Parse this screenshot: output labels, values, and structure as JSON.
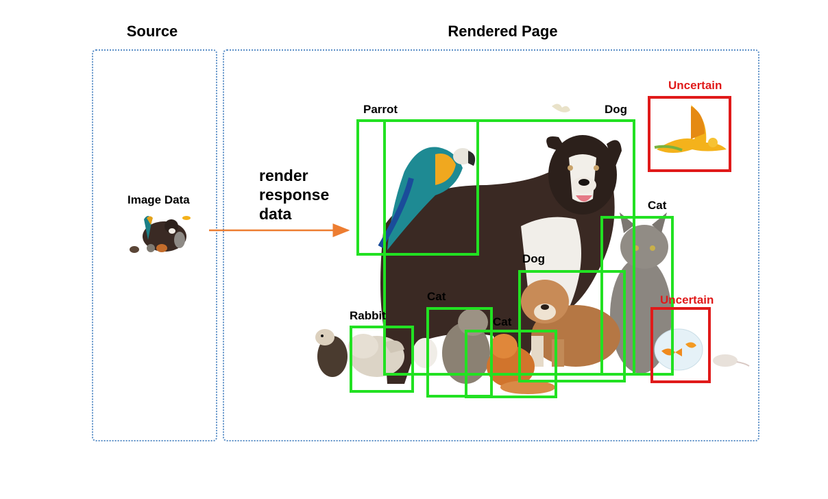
{
  "headings": {
    "source": "Source",
    "rendered": "Rendered Page"
  },
  "source": {
    "image_label": "Image Data"
  },
  "arrow": {
    "lines": [
      "render",
      "response",
      "data"
    ],
    "color": "#ed7d31"
  },
  "detections": [
    {
      "label": "Parrot",
      "status": "detected"
    },
    {
      "label": "Dog",
      "status": "detected"
    },
    {
      "label": "Cat",
      "status": "detected"
    },
    {
      "label": "Dog",
      "status": "detected"
    },
    {
      "label": "Cat",
      "status": "detected"
    },
    {
      "label": "Cat",
      "status": "detected"
    },
    {
      "label": "Rabbit",
      "status": "detected"
    },
    {
      "label": "Uncertain",
      "status": "uncertain"
    },
    {
      "label": "Uncertain",
      "status": "uncertain"
    }
  ],
  "colors": {
    "detected": "#22e122",
    "uncertain": "#e01a1a",
    "panel_border": "#5b8fc7"
  }
}
